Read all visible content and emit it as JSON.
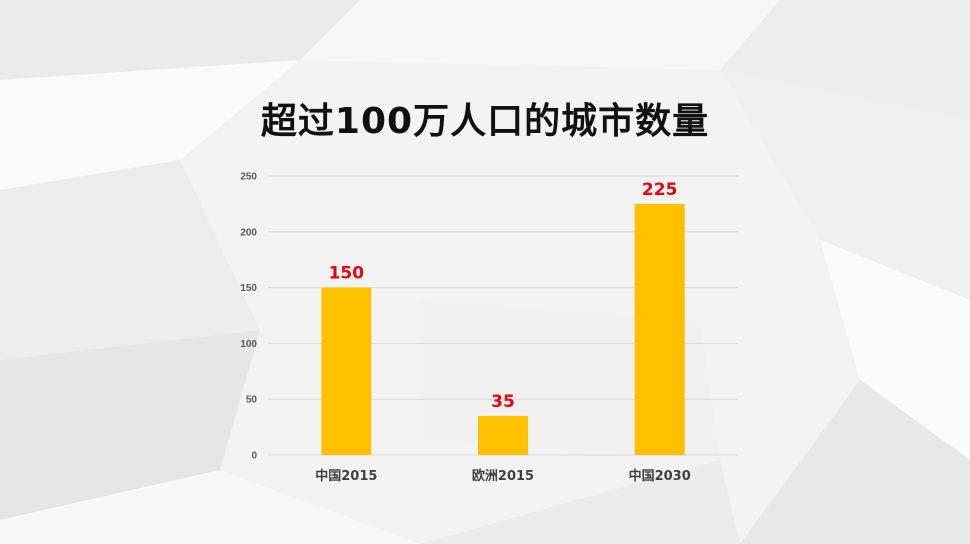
{
  "colors": {
    "bar": "#FFC000",
    "data_label": "#E8000B",
    "grid": "#D9D9D9"
  },
  "chart_data": {
    "type": "bar",
    "title": "超过100万人口的城市数量",
    "categories": [
      "中国2015",
      "欧洲2015",
      "中国2030"
    ],
    "values": [
      150,
      35,
      225
    ],
    "data_labels": [
      "150",
      "35",
      "225"
    ],
    "y_ticks": [
      "0",
      "50",
      "100",
      "150",
      "200",
      "250"
    ],
    "ylim": [
      0,
      250
    ],
    "xlabel": "",
    "ylabel": "",
    "grid": true,
    "legend": "none"
  }
}
